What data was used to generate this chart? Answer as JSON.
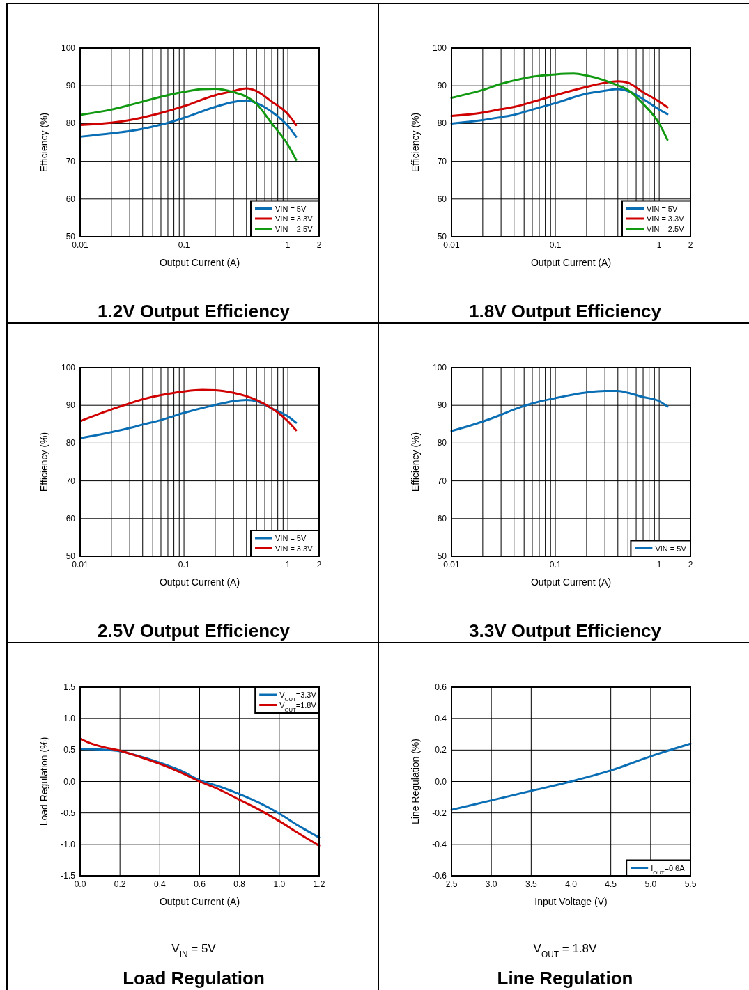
{
  "chart_data": [
    {
      "type": "line",
      "title": "1.2V Output Efficiency",
      "xlabel": "Output Current (A)",
      "ylabel": "Efficiency (%)",
      "log": "x",
      "grid": true,
      "legend": "bottom right",
      "marker": "none",
      "line_style": "solid",
      "xlim": [
        0.01,
        2
      ],
      "xticks": [
        0.01,
        {
          "value": 0.02,
          "label": null
        },
        {
          "value": 0.03,
          "label": null
        },
        {
          "value": 0.04,
          "label": null
        },
        {
          "value": 0.05,
          "label": null
        },
        {
          "value": 0.06,
          "label": null
        },
        {
          "value": 0.07,
          "label": null
        },
        {
          "value": 0.08,
          "label": null
        },
        {
          "value": 0.09,
          "label": null
        },
        0.1,
        {
          "value": 0.2,
          "label": null
        },
        {
          "value": 0.3,
          "label": null
        },
        {
          "value": 0.4,
          "label": null
        },
        {
          "value": 0.5,
          "label": null
        },
        {
          "value": 0.6,
          "label": null
        },
        {
          "value": 0.7,
          "label": null
        },
        {
          "value": 0.8,
          "label": null
        },
        {
          "value": 0.9,
          "label": null
        },
        1,
        2
      ],
      "ylim": [
        50,
        100
      ],
      "yticks": [
        50,
        60,
        70,
        80,
        90,
        100
      ],
      "series": [
        {
          "name": "VIN = 5V",
          "color": "#0a6eb4",
          "x": [
            0.01,
            0.02,
            0.03,
            0.04,
            0.06,
            0.1,
            0.2,
            0.3,
            0.4,
            0.5,
            0.7,
            1,
            1.2
          ],
          "values": [
            76.5,
            77.4,
            78.0,
            78.6,
            79.7,
            81.5,
            84.4,
            85.7,
            86.1,
            85.4,
            83.1,
            79.4,
            76.5
          ]
        },
        {
          "name": "VIN = 3.3V",
          "color": "#d00000",
          "x": [
            0.01,
            0.02,
            0.03,
            0.04,
            0.06,
            0.1,
            0.2,
            0.3,
            0.4,
            0.5,
            0.7,
            1,
            1.2
          ],
          "values": [
            79.6,
            80.2,
            80.9,
            81.6,
            82.8,
            84.6,
            87.5,
            88.6,
            89.3,
            88.6,
            85.8,
            82.5,
            79.6
          ]
        },
        {
          "name": "VIN = 2.5V",
          "color": "#119911",
          "x": [
            0.01,
            0.02,
            0.03,
            0.04,
            0.06,
            0.1,
            0.15,
            0.2,
            0.3,
            0.4,
            0.5,
            0.7,
            1,
            1.2
          ],
          "values": [
            82.3,
            83.7,
            84.9,
            85.8,
            87.1,
            88.4,
            89.1,
            89.2,
            88.3,
            87.1,
            85.2,
            80.0,
            74.4,
            70.4
          ]
        }
      ]
    },
    {
      "type": "line",
      "title": "1.8V Output Efficiency",
      "xlabel": "Output Current (A)",
      "ylabel": "Efficiency (%)",
      "log": "x",
      "grid": true,
      "legend": "bottom right",
      "marker": "none",
      "line_style": "solid",
      "xlim": [
        0.01,
        2
      ],
      "xticks": [
        0.01,
        {
          "value": 0.02,
          "label": null
        },
        {
          "value": 0.03,
          "label": null
        },
        {
          "value": 0.04,
          "label": null
        },
        {
          "value": 0.05,
          "label": null
        },
        {
          "value": 0.06,
          "label": null
        },
        {
          "value": 0.07,
          "label": null
        },
        {
          "value": 0.08,
          "label": null
        },
        {
          "value": 0.09,
          "label": null
        },
        0.1,
        {
          "value": 0.2,
          "label": null
        },
        {
          "value": 0.3,
          "label": null
        },
        {
          "value": 0.4,
          "label": null
        },
        {
          "value": 0.5,
          "label": null
        },
        {
          "value": 0.6,
          "label": null
        },
        {
          "value": 0.7,
          "label": null
        },
        {
          "value": 0.8,
          "label": null
        },
        {
          "value": 0.9,
          "label": null
        },
        1,
        2
      ],
      "ylim": [
        50,
        100
      ],
      "yticks": [
        50,
        60,
        70,
        80,
        90,
        100
      ],
      "series": [
        {
          "name": "VIN = 5V",
          "color": "#0a6eb4",
          "x": [
            0.01,
            0.02,
            0.03,
            0.04,
            0.06,
            0.1,
            0.2,
            0.3,
            0.4,
            0.5,
            0.7,
            1,
            1.2
          ],
          "values": [
            80.0,
            80.9,
            81.7,
            82.3,
            83.7,
            85.4,
            87.9,
            88.7,
            89.1,
            88.6,
            86.5,
            83.7,
            82.5
          ]
        },
        {
          "name": "VIN = 3.3V",
          "color": "#d00000",
          "x": [
            0.01,
            0.02,
            0.03,
            0.04,
            0.06,
            0.1,
            0.2,
            0.3,
            0.4,
            0.5,
            0.7,
            1,
            1.2
          ],
          "values": [
            82.0,
            82.9,
            83.8,
            84.4,
            85.7,
            87.5,
            89.7,
            90.8,
            91.2,
            90.8,
            88.3,
            85.8,
            84.3
          ]
        },
        {
          "name": "VIN = 2.5V",
          "color": "#119911",
          "x": [
            0.01,
            0.02,
            0.03,
            0.04,
            0.06,
            0.1,
            0.15,
            0.2,
            0.3,
            0.4,
            0.5,
            0.7,
            1,
            1.2
          ],
          "values": [
            86.8,
            88.9,
            90.5,
            91.4,
            92.4,
            93.0,
            93.2,
            92.7,
            91.4,
            90.1,
            88.9,
            85.2,
            80.0,
            75.7
          ]
        }
      ]
    },
    {
      "type": "line",
      "title": "2.5V Output Efficiency",
      "xlabel": "Output Current (A)",
      "ylabel": "Efficiency (%)",
      "log": "x",
      "grid": true,
      "legend": "bottom right",
      "marker": "none",
      "line_style": "solid",
      "xlim": [
        0.01,
        2
      ],
      "xticks": [
        0.01,
        {
          "value": 0.02,
          "label": null
        },
        {
          "value": 0.03,
          "label": null
        },
        {
          "value": 0.04,
          "label": null
        },
        {
          "value": 0.05,
          "label": null
        },
        {
          "value": 0.06,
          "label": null
        },
        {
          "value": 0.07,
          "label": null
        },
        {
          "value": 0.08,
          "label": null
        },
        {
          "value": 0.09,
          "label": null
        },
        0.1,
        {
          "value": 0.2,
          "label": null
        },
        {
          "value": 0.3,
          "label": null
        },
        {
          "value": 0.4,
          "label": null
        },
        {
          "value": 0.5,
          "label": null
        },
        {
          "value": 0.6,
          "label": null
        },
        {
          "value": 0.7,
          "label": null
        },
        {
          "value": 0.8,
          "label": null
        },
        {
          "value": 0.9,
          "label": null
        },
        1,
        2
      ],
      "ylim": [
        50,
        100
      ],
      "yticks": [
        50,
        60,
        70,
        80,
        90,
        100
      ],
      "series": [
        {
          "name": "VIN = 5V",
          "color": "#0a6eb4",
          "x": [
            0.01,
            0.02,
            0.03,
            0.04,
            0.06,
            0.1,
            0.2,
            0.3,
            0.4,
            0.5,
            0.7,
            1,
            1.2
          ],
          "values": [
            81.3,
            82.9,
            84.0,
            84.9,
            86.1,
            88.0,
            90.1,
            91.1,
            91.4,
            91.1,
            89.2,
            87.1,
            85.4
          ]
        },
        {
          "name": "VIN = 3.3V",
          "color": "#d00000",
          "x": [
            0.01,
            0.02,
            0.03,
            0.04,
            0.06,
            0.1,
            0.15,
            0.2,
            0.3,
            0.4,
            0.5,
            0.7,
            1,
            1.2
          ],
          "values": [
            85.8,
            88.9,
            90.5,
            91.6,
            92.7,
            93.7,
            94.1,
            94.0,
            93.3,
            92.4,
            91.4,
            89.2,
            85.8,
            83.4
          ]
        }
      ]
    },
    {
      "type": "line",
      "title": "3.3V Output Efficiency",
      "xlabel": "Output Current (A)",
      "ylabel": "Efficiency (%)",
      "log": "x",
      "grid": true,
      "legend": "bottom right",
      "marker": "none",
      "line_style": "solid",
      "xlim": [
        0.01,
        2
      ],
      "xticks": [
        0.01,
        {
          "value": 0.02,
          "label": null
        },
        {
          "value": 0.03,
          "label": null
        },
        {
          "value": 0.04,
          "label": null
        },
        {
          "value": 0.05,
          "label": null
        },
        {
          "value": 0.06,
          "label": null
        },
        {
          "value": 0.07,
          "label": null
        },
        {
          "value": 0.08,
          "label": null
        },
        {
          "value": 0.09,
          "label": null
        },
        0.1,
        {
          "value": 0.2,
          "label": null
        },
        {
          "value": 0.3,
          "label": null
        },
        {
          "value": 0.4,
          "label": null
        },
        {
          "value": 0.5,
          "label": null
        },
        {
          "value": 0.6,
          "label": null
        },
        {
          "value": 0.7,
          "label": null
        },
        {
          "value": 0.8,
          "label": null
        },
        {
          "value": 0.9,
          "label": null
        },
        1,
        2
      ],
      "ylim": [
        50,
        100
      ],
      "yticks": [
        50,
        60,
        70,
        80,
        90,
        100
      ],
      "series": [
        {
          "name": "VIN = 5V",
          "color": "#0a6eb4",
          "x": [
            0.01,
            0.02,
            0.03,
            0.04,
            0.06,
            0.1,
            0.2,
            0.3,
            0.4,
            0.5,
            0.7,
            1,
            1.2
          ],
          "values": [
            83.2,
            85.7,
            87.5,
            88.9,
            90.5,
            91.9,
            93.4,
            93.8,
            93.8,
            93.3,
            92.2,
            91.1,
            89.7
          ]
        }
      ]
    },
    {
      "type": "line",
      "title": "Load Regulation",
      "subtitle": "V$_{IN}$ = 5V",
      "xlabel": "Output Current (A)",
      "ylabel": "Load Regulation (%)",
      "grid": true,
      "legend": "top right",
      "marker": "none",
      "line_style": "solid",
      "xlim": [
        0,
        1.2
      ],
      "xticks": [
        {
          "value": 0,
          "label": "0.0"
        },
        0.2,
        0.4,
        0.6,
        0.8,
        {
          "value": 1,
          "label": "1.0"
        },
        1.2
      ],
      "ylim": [
        -1.5,
        1.5
      ],
      "yticks": [
        -1.5,
        {
          "value": -1,
          "label": "-1.0"
        },
        -0.5,
        {
          "value": 0,
          "label": "0.0"
        },
        0.5,
        {
          "value": 1,
          "label": "1.0"
        },
        1.5
      ],
      "series": [
        {
          "name": "V$_{OUT}$=3.3V",
          "color": "#0a6eb4",
          "x": [
            0,
            0.1,
            0.2,
            0.3,
            0.4,
            0.5,
            0.6,
            0.7,
            0.8,
            0.9,
            1.0,
            1.1,
            1.2
          ],
          "values": [
            0.52,
            0.51,
            0.48,
            0.4,
            0.3,
            0.18,
            0.02,
            -0.08,
            -0.2,
            -0.34,
            -0.51,
            -0.71,
            -0.89
          ]
        },
        {
          "name": "V$_{OUT}$=1.8V",
          "color": "#d00000",
          "x": [
            0,
            0.05,
            0.1,
            0.2,
            0.3,
            0.4,
            0.5,
            0.6,
            0.7,
            0.8,
            0.9,
            1.0,
            1.1,
            1.2
          ],
          "values": [
            0.68,
            0.61,
            0.56,
            0.49,
            0.39,
            0.28,
            0.15,
            0.0,
            -0.13,
            -0.29,
            -0.45,
            -0.63,
            -0.83,
            -1.02
          ]
        }
      ]
    },
    {
      "type": "line",
      "title": "Line Regulation",
      "subtitle": "V$_{OUT}$ = 1.8V",
      "xlabel": "Input Voltage (V)",
      "ylabel": "Line Regulation (%)",
      "grid": true,
      "legend": "bottom right",
      "marker": "none",
      "line_style": "solid",
      "xlim": [
        2.5,
        5.5
      ],
      "xticks": [
        2.5,
        {
          "value": 3,
          "label": "3.0"
        },
        3.5,
        {
          "value": 4,
          "label": "4.0"
        },
        4.5,
        {
          "value": 5,
          "label": "5.0"
        },
        5.5
      ],
      "ylim": [
        -0.6,
        0.6
      ],
      "yticks": [
        -0.6,
        -0.4,
        -0.2,
        {
          "value": 0,
          "label": "0.0"
        },
        0.2,
        0.4,
        0.6
      ],
      "series": [
        {
          "name": "I$_{OUT}$=0.6A",
          "color": "#0a6eb4",
          "x": [
            2.5,
            3.0,
            3.5,
            4.0,
            4.5,
            5.0,
            5.5
          ],
          "values": [
            -0.18,
            -0.12,
            -0.06,
            0.0,
            0.07,
            0.16,
            0.24
          ]
        }
      ]
    }
  ]
}
